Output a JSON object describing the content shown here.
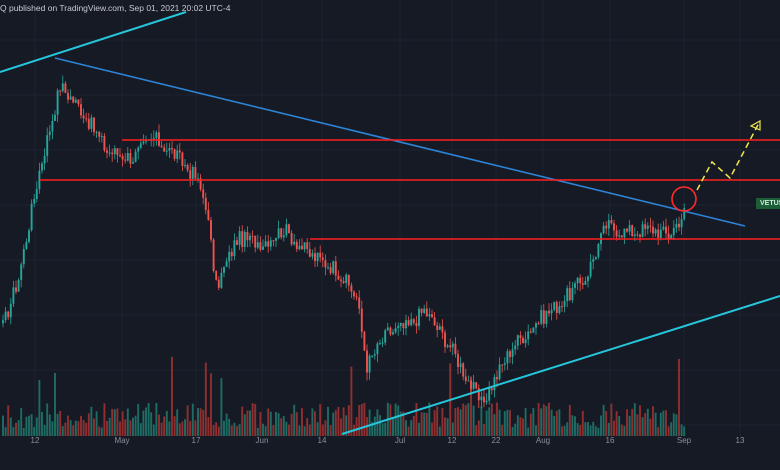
{
  "header": {
    "published_by": "Q published on TradingView.com, Sep 01, 2021 20:02 UTC-4"
  },
  "ticker": {
    "label": "VETUSI"
  },
  "colors": {
    "background": "#161a25",
    "grid": "#1f2330",
    "up": "#26a69a",
    "down": "#ef5350",
    "upVol": "#1e6c63",
    "downVol": "#8f2f30",
    "resistance": "#ff1f1f",
    "downtrend": "#2d84d6",
    "channel": "#26c6da",
    "projection": "#f5e94a",
    "highlight": "#ff2a2a",
    "axis_text": "#8a8f9c"
  },
  "chart_data": {
    "type": "candlestick",
    "x_tick_labels": [
      "12",
      "May",
      "17",
      "Jun",
      "14",
      "Jul",
      "12",
      "22",
      "Aug",
      "16",
      "Sep",
      "13"
    ],
    "annotations": [
      {
        "kind": "horizontal-line",
        "role": "resistance"
      },
      {
        "kind": "horizontal-line",
        "role": "resistance"
      },
      {
        "kind": "horizontal-line",
        "role": "support"
      },
      {
        "kind": "trendline",
        "role": "descending-resistance"
      },
      {
        "kind": "trendline",
        "role": "ascending-channel"
      },
      {
        "kind": "circle",
        "role": "breakout-highlight"
      },
      {
        "kind": "dashed-path",
        "role": "projected-move"
      }
    ],
    "price_path": [
      [
        0,
        0.18
      ],
      [
        6,
        0.33
      ],
      [
        14,
        0.66
      ],
      [
        22,
        0.92
      ],
      [
        30,
        0.85
      ],
      [
        40,
        0.72
      ],
      [
        50,
        0.7
      ],
      [
        58,
        0.76
      ],
      [
        66,
        0.71
      ],
      [
        74,
        0.64
      ],
      [
        78,
        0.56
      ],
      [
        82,
        0.3
      ],
      [
        90,
        0.45
      ],
      [
        100,
        0.44
      ],
      [
        108,
        0.48
      ],
      [
        118,
        0.4
      ],
      [
        128,
        0.36
      ],
      [
        136,
        0.27
      ],
      [
        140,
        0.06
      ],
      [
        148,
        0.16
      ],
      [
        156,
        0.18
      ],
      [
        162,
        0.23
      ],
      [
        172,
        0.12
      ],
      [
        184,
        -0.06
      ],
      [
        196,
        0.12
      ],
      [
        206,
        0.2
      ],
      [
        214,
        0.25
      ],
      [
        224,
        0.33
      ],
      [
        232,
        0.49
      ],
      [
        240,
        0.47
      ],
      [
        250,
        0.48
      ],
      [
        256,
        0.46
      ],
      [
        262,
        0.53
      ]
    ],
    "volume_spikes": [
      14,
      20,
      65,
      78,
      80,
      84,
      134,
      172,
      180,
      260
    ]
  }
}
